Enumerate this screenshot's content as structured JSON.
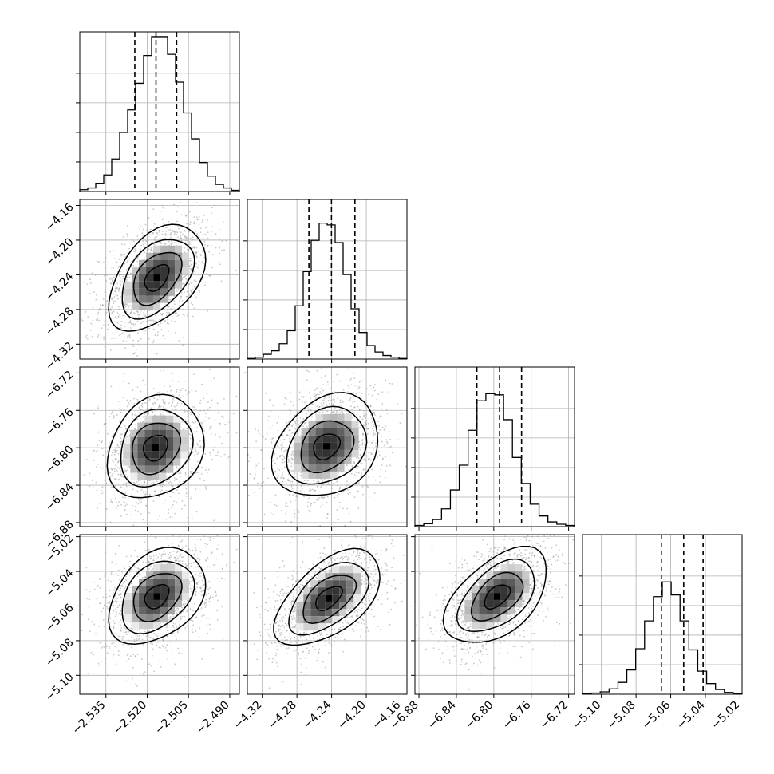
{
  "chart_data": {
    "type": "corner",
    "n_params": 4,
    "colors": {
      "line": "#000000",
      "grid": "#b0b0b0",
      "samples": "#9a9a9a"
    },
    "grid": true,
    "params": [
      {
        "ticks": [
          -2.535,
          -2.52,
          -2.505,
          -2.49
        ],
        "tick_labels": [
          "−2.535",
          "−2.520",
          "−2.505",
          "−2.490"
        ],
        "range": [
          -2.5445,
          -2.4865
        ],
        "quantiles": [
          -2.5245,
          -2.5168,
          -2.5093
        ],
        "hist_counts": [
          3,
          6,
          14,
          28,
          55,
          100,
          138,
          183,
          230,
          262,
          262,
          232,
          185,
          133,
          89,
          49,
          26,
          12,
          6,
          2
        ]
      },
      {
        "ticks": [
          -4.32,
          -4.28,
          -4.24,
          -4.2,
          -4.16
        ],
        "tick_labels": [
          "−4.32",
          "−4.28",
          "−4.24",
          "−4.20",
          "−4.16"
        ],
        "range": [
          -4.3372,
          -4.1531
        ],
        "quantiles": [
          -4.2662,
          -4.2402,
          -4.2131
        ],
        "hist_counts": [
          1,
          3,
          8,
          14,
          26,
          48,
          90,
          148,
          201,
          230,
          227,
          197,
          143,
          85,
          45,
          23,
          12,
          6,
          3,
          1
        ]
      },
      {
        "ticks": [
          -6.88,
          -6.84,
          -6.8,
          -6.76,
          -6.72
        ],
        "tick_labels": [
          "−6.88",
          "−6.84",
          "−6.80",
          "−6.76",
          "−6.72"
        ],
        "range": [
          -6.8843,
          -6.7137
        ],
        "quantiles": [
          -6.8181,
          -6.7938,
          -6.7703
        ],
        "hist_counts": [
          2,
          5,
          12,
          30,
          62,
          104,
          163,
          213,
          225,
          223,
          181,
          117,
          73,
          38,
          18,
          8,
          4,
          2
        ]
      },
      {
        "ticks": [
          -5.1,
          -5.08,
          -5.06,
          -5.04,
          -5.02
        ],
        "tick_labels": [
          "−5.10",
          "−5.08",
          "−5.06",
          "−5.04",
          "−5.02"
        ],
        "range": [
          -5.1109,
          -5.0188
        ],
        "quantiles": [
          -5.0654,
          -5.0525,
          -5.0413
        ],
        "hist_counts": [
          1,
          2,
          4,
          9,
          20,
          41,
          77,
          124,
          165,
          190,
          168,
          124,
          75,
          39,
          18,
          8,
          3,
          1
        ]
      }
    ],
    "hist_ylim": [
      0,
      270
    ],
    "hist_yticks": [
      50,
      100,
      150,
      200
    ],
    "pair_correlation": {
      "1-0": 0.45,
      "2-0": 0.2,
      "2-1": 0.25,
      "3-0": 0.35,
      "3-1": 0.55,
      "3-2": 0.5
    },
    "density_peak": {
      "1-0": [
        -2.5165,
        -4.2435
      ],
      "2-0": [
        -2.517,
        -6.8
      ],
      "2-1": [
        -4.246,
        -6.7985
      ],
      "3-0": [
        -2.5165,
        -5.0545
      ],
      "3-1": [
        -4.2435,
        -5.0555
      ],
      "3-2": [
        -6.7965,
        -5.0545
      ]
    },
    "contour_levels_sigma": [
      0.5,
      1.0,
      1.5,
      2.0
    ],
    "samples_per_panel": 1400
  }
}
